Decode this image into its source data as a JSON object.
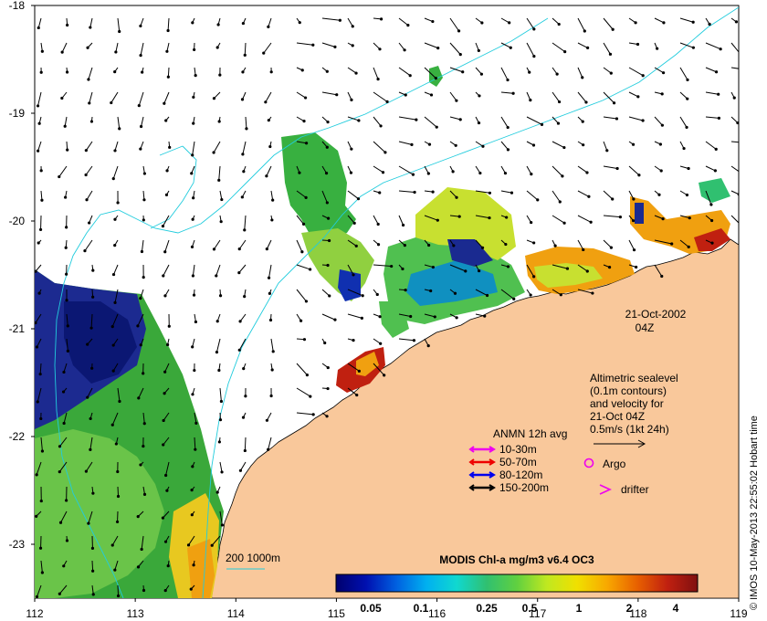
{
  "colors": {
    "land": "#f9c89b",
    "ocean": "#ffffff",
    "contour": "#22ccdd",
    "chl_low": "#2a1f8a",
    "chl_mid": "#3aa83a",
    "chl_hi": "#8a1a10",
    "argo": "#ee00ee",
    "drifter": "#ee00ee"
  },
  "map": {
    "lon_ticks": [
      "112",
      "113",
      "114",
      "115",
      "116",
      "117",
      "118",
      "119"
    ],
    "lat_ticks": [
      "-18",
      "-19",
      "-20",
      "-21",
      "-22",
      "-23"
    ],
    "date_label": "21-Oct-2002",
    "time_label": "04Z",
    "credit": "© IMOS 10-May-2013 22:55:02 Hobart time"
  },
  "legend": {
    "altimetry_lines": [
      "Altimetric sealevel",
      "(0.1m contours)",
      "and velocity for",
      "21-Oct 04Z",
      "0.5m/s (1kt 24h)"
    ],
    "anmn_title": "ANMN 12h avg",
    "anmn_items": [
      {
        "label": "10-30m",
        "color": "#ee00ee"
      },
      {
        "label": "50-70m",
        "color": "#ee0000"
      },
      {
        "label": "80-120m",
        "color": "#0000ee"
      },
      {
        "label": "150-200m",
        "color": "#000000"
      }
    ],
    "argo_label": "Argo",
    "drifter_label": "drifter",
    "bathy_label": "200  1000m"
  },
  "colorbar": {
    "title": "MODIS Chl-a mg/m3 v6.4 OC3",
    "tick_labels": [
      "0.05",
      "0.1",
      "0.25",
      "0.5",
      "1",
      "2",
      "4"
    ],
    "stops": [
      "#00006e",
      "#0010b0",
      "#0060e0",
      "#00b0f0",
      "#10d8d0",
      "#30c070",
      "#60d040",
      "#c0e820",
      "#f0e000",
      "#f8a800",
      "#e86000",
      "#c02010",
      "#801010"
    ]
  }
}
